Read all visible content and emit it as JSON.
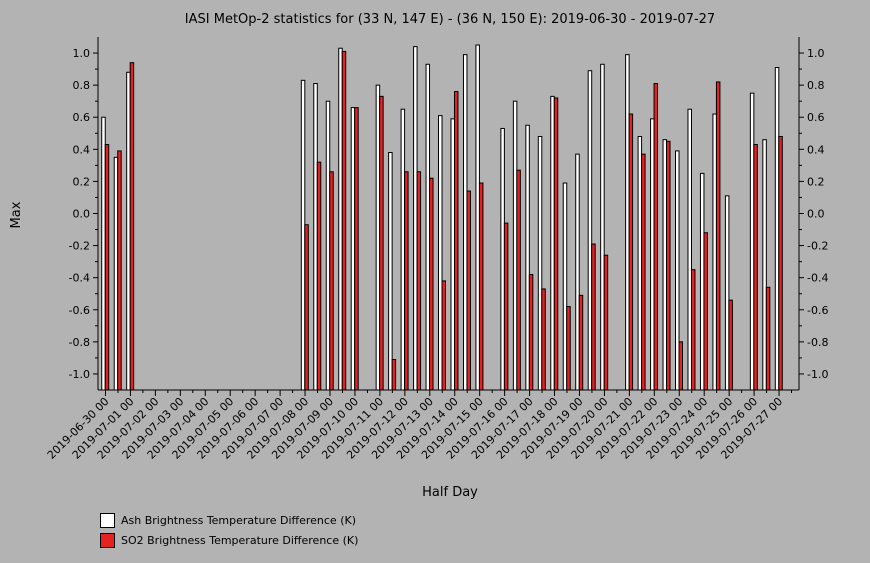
{
  "colors": {
    "background": "#b3b3b3",
    "ash": "#ffffff",
    "so2": "#e52222",
    "axis": "#000000"
  },
  "chart_data": {
    "type": "bar",
    "title": "IASI MetOp-2 statistics for (33 N, 147 E) - (36 N, 150 E): 2019-06-30 - 2019-07-27",
    "xlabel": "Half Day",
    "ylabel": "Max",
    "ylim": [
      -1.1,
      1.1
    ],
    "yticks": [
      "1.0",
      "0.8",
      "0.6",
      "0.4",
      "0.2",
      "0.0",
      "-0.2",
      "-0.4",
      "-0.6",
      "-0.8",
      "-1.0"
    ],
    "ytick_values": [
      1.0,
      0.8,
      0.6,
      0.4,
      0.2,
      0.0,
      -0.2,
      -0.4,
      -0.6,
      -0.8,
      -1.0
    ],
    "xtick_labels": [
      "2019-06-30 00",
      "2019-07-01 00",
      "2019-07-02 00",
      "2019-07-03 00",
      "2019-07-04 00",
      "2019-07-05 00",
      "2019-07-06 00",
      "2019-07-07 00",
      "2019-07-08 00",
      "2019-07-09 00",
      "2019-07-10 00",
      "2019-07-11 00",
      "2019-07-12 00",
      "2019-07-13 00",
      "2019-07-14 00",
      "2019-07-15 00",
      "2019-07-16 00",
      "2019-07-17 00",
      "2019-07-18 00",
      "2019-07-19 00",
      "2019-07-20 00",
      "2019-07-21 00",
      "2019-07-22 00",
      "2019-07-23 00",
      "2019-07-24 00",
      "2019-07-25 00",
      "2019-07-26 00",
      "2019-07-27 00"
    ],
    "categories": [
      "2019-06-30 00",
      "2019-06-30 12",
      "2019-07-01 00",
      "2019-07-01 12",
      "2019-07-02 00",
      "2019-07-02 12",
      "2019-07-03 00",
      "2019-07-03 12",
      "2019-07-04 00",
      "2019-07-04 12",
      "2019-07-05 00",
      "2019-07-05 12",
      "2019-07-06 00",
      "2019-07-06 12",
      "2019-07-07 00",
      "2019-07-07 12",
      "2019-07-08 00",
      "2019-07-08 12",
      "2019-07-09 00",
      "2019-07-09 12",
      "2019-07-10 00",
      "2019-07-10 12",
      "2019-07-11 00",
      "2019-07-11 12",
      "2019-07-12 00",
      "2019-07-12 12",
      "2019-07-13 00",
      "2019-07-13 12",
      "2019-07-14 00",
      "2019-07-14 12",
      "2019-07-15 00",
      "2019-07-15 12",
      "2019-07-16 00",
      "2019-07-16 12",
      "2019-07-17 00",
      "2019-07-17 12",
      "2019-07-18 00",
      "2019-07-18 12",
      "2019-07-19 00",
      "2019-07-19 12",
      "2019-07-20 00",
      "2019-07-20 12",
      "2019-07-21 00",
      "2019-07-21 12",
      "2019-07-22 00",
      "2019-07-22 12",
      "2019-07-23 00",
      "2019-07-23 12",
      "2019-07-24 00",
      "2019-07-24 12",
      "2019-07-25 00",
      "2019-07-25 12",
      "2019-07-26 00",
      "2019-07-26 12",
      "2019-07-27 00",
      "2019-07-27 12"
    ],
    "series": [
      {
        "name": "Ash Brightness Temperature Difference (K)",
        "values": [
          0.6,
          0.35,
          0.88,
          null,
          null,
          null,
          null,
          null,
          null,
          null,
          null,
          null,
          null,
          null,
          null,
          null,
          0.83,
          0.81,
          0.7,
          1.03,
          0.66,
          null,
          0.8,
          0.38,
          0.65,
          1.04,
          0.93,
          0.61,
          0.59,
          0.99,
          1.05,
          null,
          0.53,
          0.7,
          0.55,
          0.48,
          0.73,
          0.19,
          0.37,
          0.89,
          0.93,
          null,
          0.99,
          0.48,
          0.59,
          0.46,
          0.39,
          0.65,
          0.25,
          0.62,
          0.11,
          null,
          0.75,
          0.46,
          0.91,
          null
        ]
      },
      {
        "name": "SO2 Brightness Temperature Difference (K)",
        "values": [
          0.43,
          0.39,
          0.94,
          null,
          null,
          null,
          null,
          null,
          null,
          null,
          null,
          null,
          null,
          null,
          null,
          null,
          -0.07,
          0.32,
          0.26,
          1.01,
          0.66,
          null,
          0.73,
          -0.91,
          0.26,
          0.26,
          0.22,
          -0.42,
          0.76,
          0.14,
          0.19,
          null,
          -0.06,
          0.27,
          -0.38,
          -0.47,
          0.72,
          -0.58,
          -0.51,
          -0.19,
          -0.26,
          null,
          0.62,
          0.37,
          0.81,
          0.45,
          -0.8,
          -0.35,
          -0.12,
          0.82,
          -0.54,
          null,
          0.43,
          -0.46,
          0.48,
          null
        ]
      }
    ],
    "legend": "bottom-left",
    "grid": false
  }
}
